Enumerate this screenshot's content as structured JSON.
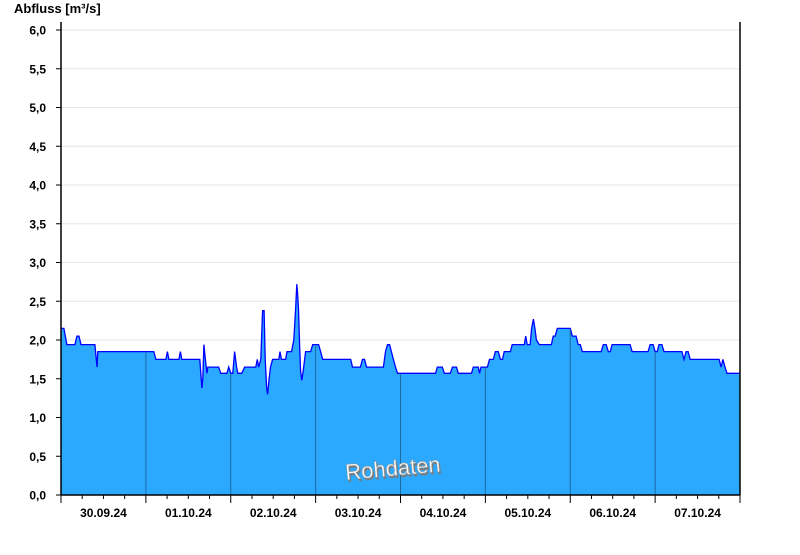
{
  "chart_data": {
    "type": "area",
    "ylabel": "Abfluss [m³/s]",
    "watermark": "Rohdaten",
    "xlim": [
      "30.09.24 00:00",
      "08.10.24 00:00"
    ],
    "ylim": [
      0,
      6
    ],
    "yticks": [
      "0,0",
      "0,5",
      "1,0",
      "1,5",
      "2,0",
      "2,5",
      "3,0",
      "3,5",
      "4,0",
      "4,5",
      "5,0",
      "5,5",
      "6,0"
    ],
    "xtick_labels": [
      "30.09.24",
      "01.10.24",
      "02.10.24",
      "03.10.24",
      "04.10.24",
      "05.10.24",
      "06.10.24",
      "07.10.24"
    ],
    "grid": true,
    "colors": {
      "fill": "#2aa9ff",
      "line": "#0000ff",
      "day_divider": "#1d6a9e",
      "grid": "#e6e6e6"
    },
    "points": [
      [
        "30.09.24 00:00",
        2.15
      ],
      [
        "30.09.24 00:50",
        2.15
      ],
      [
        "30.09.24 01:40",
        1.94
      ],
      [
        "30.09.24 03:55",
        1.94
      ],
      [
        "30.09.24 04:30",
        2.05
      ],
      [
        "30.09.24 05:05",
        2.05
      ],
      [
        "30.09.24 05:40",
        1.94
      ],
      [
        "30.09.24 09:35",
        1.94
      ],
      [
        "30.09.24 10:10",
        1.65
      ],
      [
        "30.09.24 10:25",
        1.85
      ],
      [
        "01.10.24 02:15",
        1.85
      ],
      [
        "01.10.24 02:50",
        1.75
      ],
      [
        "01.10.24 05:40",
        1.75
      ],
      [
        "01.10.24 06:05",
        1.85
      ],
      [
        "01.10.24 06:30",
        1.75
      ],
      [
        "01.10.24 09:20",
        1.75
      ],
      [
        "01.10.24 09:45",
        1.85
      ],
      [
        "01.10.24 10:10",
        1.75
      ],
      [
        "01.10.24 15:15",
        1.75
      ],
      [
        "01.10.24 15:50",
        1.38
      ],
      [
        "01.10.24 16:05",
        1.5
      ],
      [
        "01.10.24 16:25",
        1.94
      ],
      [
        "01.10.24 16:50",
        1.75
      ],
      [
        "01.10.24 17:15",
        1.57
      ],
      [
        "01.10.24 17:30",
        1.65
      ],
      [
        "01.10.24 20:35",
        1.65
      ],
      [
        "01.10.24 21:10",
        1.57
      ],
      [
        "01.10.24 22:55",
        1.57
      ],
      [
        "01.10.24 23:25",
        1.65
      ],
      [
        "02.10.24 00:00",
        1.57
      ],
      [
        "02.10.24 00:35",
        1.57
      ],
      [
        "02.10.24 01:05",
        1.85
      ],
      [
        "02.10.24 01:40",
        1.65
      ],
      [
        "02.10.24 02:00",
        1.57
      ],
      [
        "02.10.24 03:05",
        1.57
      ],
      [
        "02.10.24 03:55",
        1.65
      ],
      [
        "02.10.24 07:05",
        1.65
      ],
      [
        "02.10.24 07:30",
        1.75
      ],
      [
        "02.10.24 07:55",
        1.65
      ],
      [
        "02.10.24 08:30",
        1.75
      ],
      [
        "02.10.24 09:00",
        2.38
      ],
      [
        "02.10.24 09:25",
        2.38
      ],
      [
        "02.10.24 09:45",
        1.75
      ],
      [
        "02.10.24 10:10",
        1.38
      ],
      [
        "02.10.24 10:25",
        1.3
      ],
      [
        "02.10.24 10:50",
        1.5
      ],
      [
        "02.10.24 11:15",
        1.65
      ],
      [
        "02.10.24 11:50",
        1.75
      ],
      [
        "02.10.24 13:35",
        1.75
      ],
      [
        "02.10.24 13:55",
        1.85
      ],
      [
        "02.10.24 14:20",
        1.75
      ],
      [
        "02.10.24 15:30",
        1.75
      ],
      [
        "02.10.24 15:55",
        1.85
      ],
      [
        "02.10.24 17:10",
        1.85
      ],
      [
        "02.10.24 17:50",
        2.0
      ],
      [
        "02.10.24 18:20",
        2.4
      ],
      [
        "02.10.24 18:40",
        2.72
      ],
      [
        "02.10.24 18:55",
        2.6
      ],
      [
        "02.10.24 19:10",
        2.4
      ],
      [
        "02.10.24 19:30",
        1.9
      ],
      [
        "02.10.24 19:45",
        1.6
      ],
      [
        "02.10.24 20:05",
        1.48
      ],
      [
        "02.10.24 20:30",
        1.6
      ],
      [
        "02.10.24 21:10",
        1.85
      ],
      [
        "02.10.24 22:35",
        1.85
      ],
      [
        "02.10.24 23:10",
        1.94
      ],
      [
        "03.10.24 00:50",
        1.94
      ],
      [
        "03.10.24 01:25",
        1.85
      ],
      [
        "03.10.24 02:00",
        1.75
      ],
      [
        "03.10.24 09:55",
        1.75
      ],
      [
        "03.10.24 10:25",
        1.65
      ],
      [
        "03.10.24 12:40",
        1.65
      ],
      [
        "03.10.24 13:15",
        1.75
      ],
      [
        "03.10.24 13:50",
        1.75
      ],
      [
        "03.10.24 14:25",
        1.65
      ],
      [
        "03.10.24 19:10",
        1.65
      ],
      [
        "03.10.24 19:45",
        1.85
      ],
      [
        "03.10.24 20:20",
        1.94
      ],
      [
        "03.10.24 20:55",
        1.94
      ],
      [
        "03.10.24 21:25",
        1.85
      ],
      [
        "03.10.24 22:00",
        1.75
      ],
      [
        "03.10.24 22:35",
        1.65
      ],
      [
        "03.10.24 23:10",
        1.57
      ],
      [
        "04.10.24 09:55",
        1.57
      ],
      [
        "04.10.24 10:25",
        1.65
      ],
      [
        "04.10.24 11:50",
        1.65
      ],
      [
        "04.10.24 12:25",
        1.57
      ],
      [
        "04.10.24 14:05",
        1.57
      ],
      [
        "04.10.24 14:40",
        1.65
      ],
      [
        "04.10.24 15:50",
        1.65
      ],
      [
        "04.10.24 16:20",
        1.57
      ],
      [
        "04.10.24 20:05",
        1.57
      ],
      [
        "04.10.24 20:35",
        1.65
      ],
      [
        "04.10.24 22:00",
        1.65
      ],
      [
        "04.10.24 22:20",
        1.57
      ],
      [
        "04.10.24 22:45",
        1.65
      ],
      [
        "05.10.24 00:35",
        1.65
      ],
      [
        "05.10.24 01:10",
        1.75
      ],
      [
        "05.10.24 02:15",
        1.75
      ],
      [
        "05.10.24 02:50",
        1.85
      ],
      [
        "05.10.24 03:40",
        1.85
      ],
      [
        "05.10.24 04:15",
        1.75
      ],
      [
        "05.10.24 04:50",
        1.75
      ],
      [
        "05.10.24 05:20",
        1.85
      ],
      [
        "05.10.24 07:05",
        1.85
      ],
      [
        "05.10.24 07:35",
        1.94
      ],
      [
        "05.10.24 11:00",
        1.94
      ],
      [
        "05.10.24 11:25",
        2.05
      ],
      [
        "05.10.24 11:50",
        1.94
      ],
      [
        "05.10.24 12:40",
        1.94
      ],
      [
        "05.10.24 13:05",
        2.15
      ],
      [
        "05.10.24 13:35",
        2.27
      ],
      [
        "05.10.24 14:00",
        2.15
      ],
      [
        "05.10.24 14:25",
        2.0
      ],
      [
        "05.10.24 15:15",
        1.94
      ],
      [
        "05.10.24 18:40",
        1.94
      ],
      [
        "05.10.24 19:10",
        2.05
      ],
      [
        "05.10.24 19:45",
        2.05
      ],
      [
        "05.10.24 20:20",
        2.15
      ],
      [
        "06.10.24 00:00",
        2.15
      ],
      [
        "06.10.24 00:35",
        2.05
      ],
      [
        "06.10.24 01:40",
        2.05
      ],
      [
        "06.10.24 02:15",
        1.94
      ],
      [
        "06.10.24 02:50",
        1.94
      ],
      [
        "06.10.24 03:25",
        1.85
      ],
      [
        "06.10.24 08:45",
        1.85
      ],
      [
        "06.10.24 09:20",
        1.94
      ],
      [
        "06.10.24 10:10",
        1.94
      ],
      [
        "06.10.24 10:45",
        1.85
      ],
      [
        "06.10.24 11:20",
        1.85
      ],
      [
        "06.10.24 11:50",
        1.94
      ],
      [
        "06.10.24 16:55",
        1.94
      ],
      [
        "06.10.24 17:30",
        1.85
      ],
      [
        "06.10.24 22:00",
        1.85
      ],
      [
        "06.10.24 22:35",
        1.94
      ],
      [
        "06.10.24 23:25",
        1.94
      ],
      [
        "07.10.24 00:00",
        1.85
      ],
      [
        "07.10.24 00:35",
        1.85
      ],
      [
        "07.10.24 01:05",
        1.94
      ],
      [
        "07.10.24 01:55",
        1.94
      ],
      [
        "07.10.24 02:30",
        1.85
      ],
      [
        "07.10.24 07:35",
        1.85
      ],
      [
        "07.10.24 08:10",
        1.75
      ],
      [
        "07.10.24 08:45",
        1.85
      ],
      [
        "07.10.24 09:20",
        1.85
      ],
      [
        "07.10.24 09:55",
        1.75
      ],
      [
        "07.10.24 18:05",
        1.75
      ],
      [
        "07.10.24 18:40",
        1.65
      ],
      [
        "07.10.24 19:10",
        1.75
      ],
      [
        "07.10.24 19:45",
        1.65
      ],
      [
        "07.10.24 20:20",
        1.57
      ],
      [
        "07.10.24 23:55",
        1.57
      ]
    ]
  }
}
